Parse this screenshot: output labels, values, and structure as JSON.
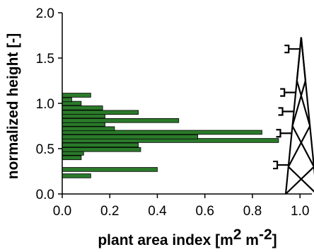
{
  "chart_data": {
    "type": "bar",
    "orientation": "horizontal",
    "xlabel": {
      "prefix": "plant area index [m",
      "sup1": "2",
      "mid": " m",
      "sup2": "-2",
      "suffix": "]"
    },
    "ylabel": "normalized height [-]",
    "xlim": [
      0.0,
      1.05
    ],
    "ylim": [
      0.0,
      2.0
    ],
    "xticks": [
      "0.0",
      "0.2",
      "0.4",
      "0.6",
      "0.8",
      "1.0"
    ],
    "yticks": [
      "0.0",
      "0.5",
      "1.0",
      "1.5",
      "2.0"
    ],
    "bar_height": 0.045,
    "bars": [
      {
        "height": 0.2,
        "value": 0.12
      },
      {
        "height": 0.27,
        "value": 0.4
      },
      {
        "height": 0.4,
        "value": 0.08
      },
      {
        "height": 0.45,
        "value": 0.09
      },
      {
        "height": 0.49,
        "value": 0.33
      },
      {
        "height": 0.54,
        "value": 0.32
      },
      {
        "height": 0.59,
        "value": 0.91
      },
      {
        "height": 0.63,
        "value": 0.57
      },
      {
        "height": 0.68,
        "value": 0.84
      },
      {
        "height": 0.72,
        "value": 0.22
      },
      {
        "height": 0.77,
        "value": 0.18
      },
      {
        "height": 0.81,
        "value": 0.49
      },
      {
        "height": 0.86,
        "value": 0.18
      },
      {
        "height": 0.9,
        "value": 0.32
      },
      {
        "height": 0.95,
        "value": 0.17
      },
      {
        "height": 1.0,
        "value": 0.08
      },
      {
        "height": 1.04,
        "value": 0.04
      },
      {
        "height": 1.09,
        "value": 0.12
      }
    ],
    "bar_color": "#2a7a2a",
    "grid": false,
    "legend": "none",
    "decoration": {
      "type": "tower-icon",
      "description": "lattice tower with sensor booms",
      "x_range": [
        0.94,
        1.07
      ],
      "top_height": 1.73,
      "boom_heights": [
        0.32,
        0.67,
        0.91,
        1.12,
        1.6
      ]
    }
  }
}
